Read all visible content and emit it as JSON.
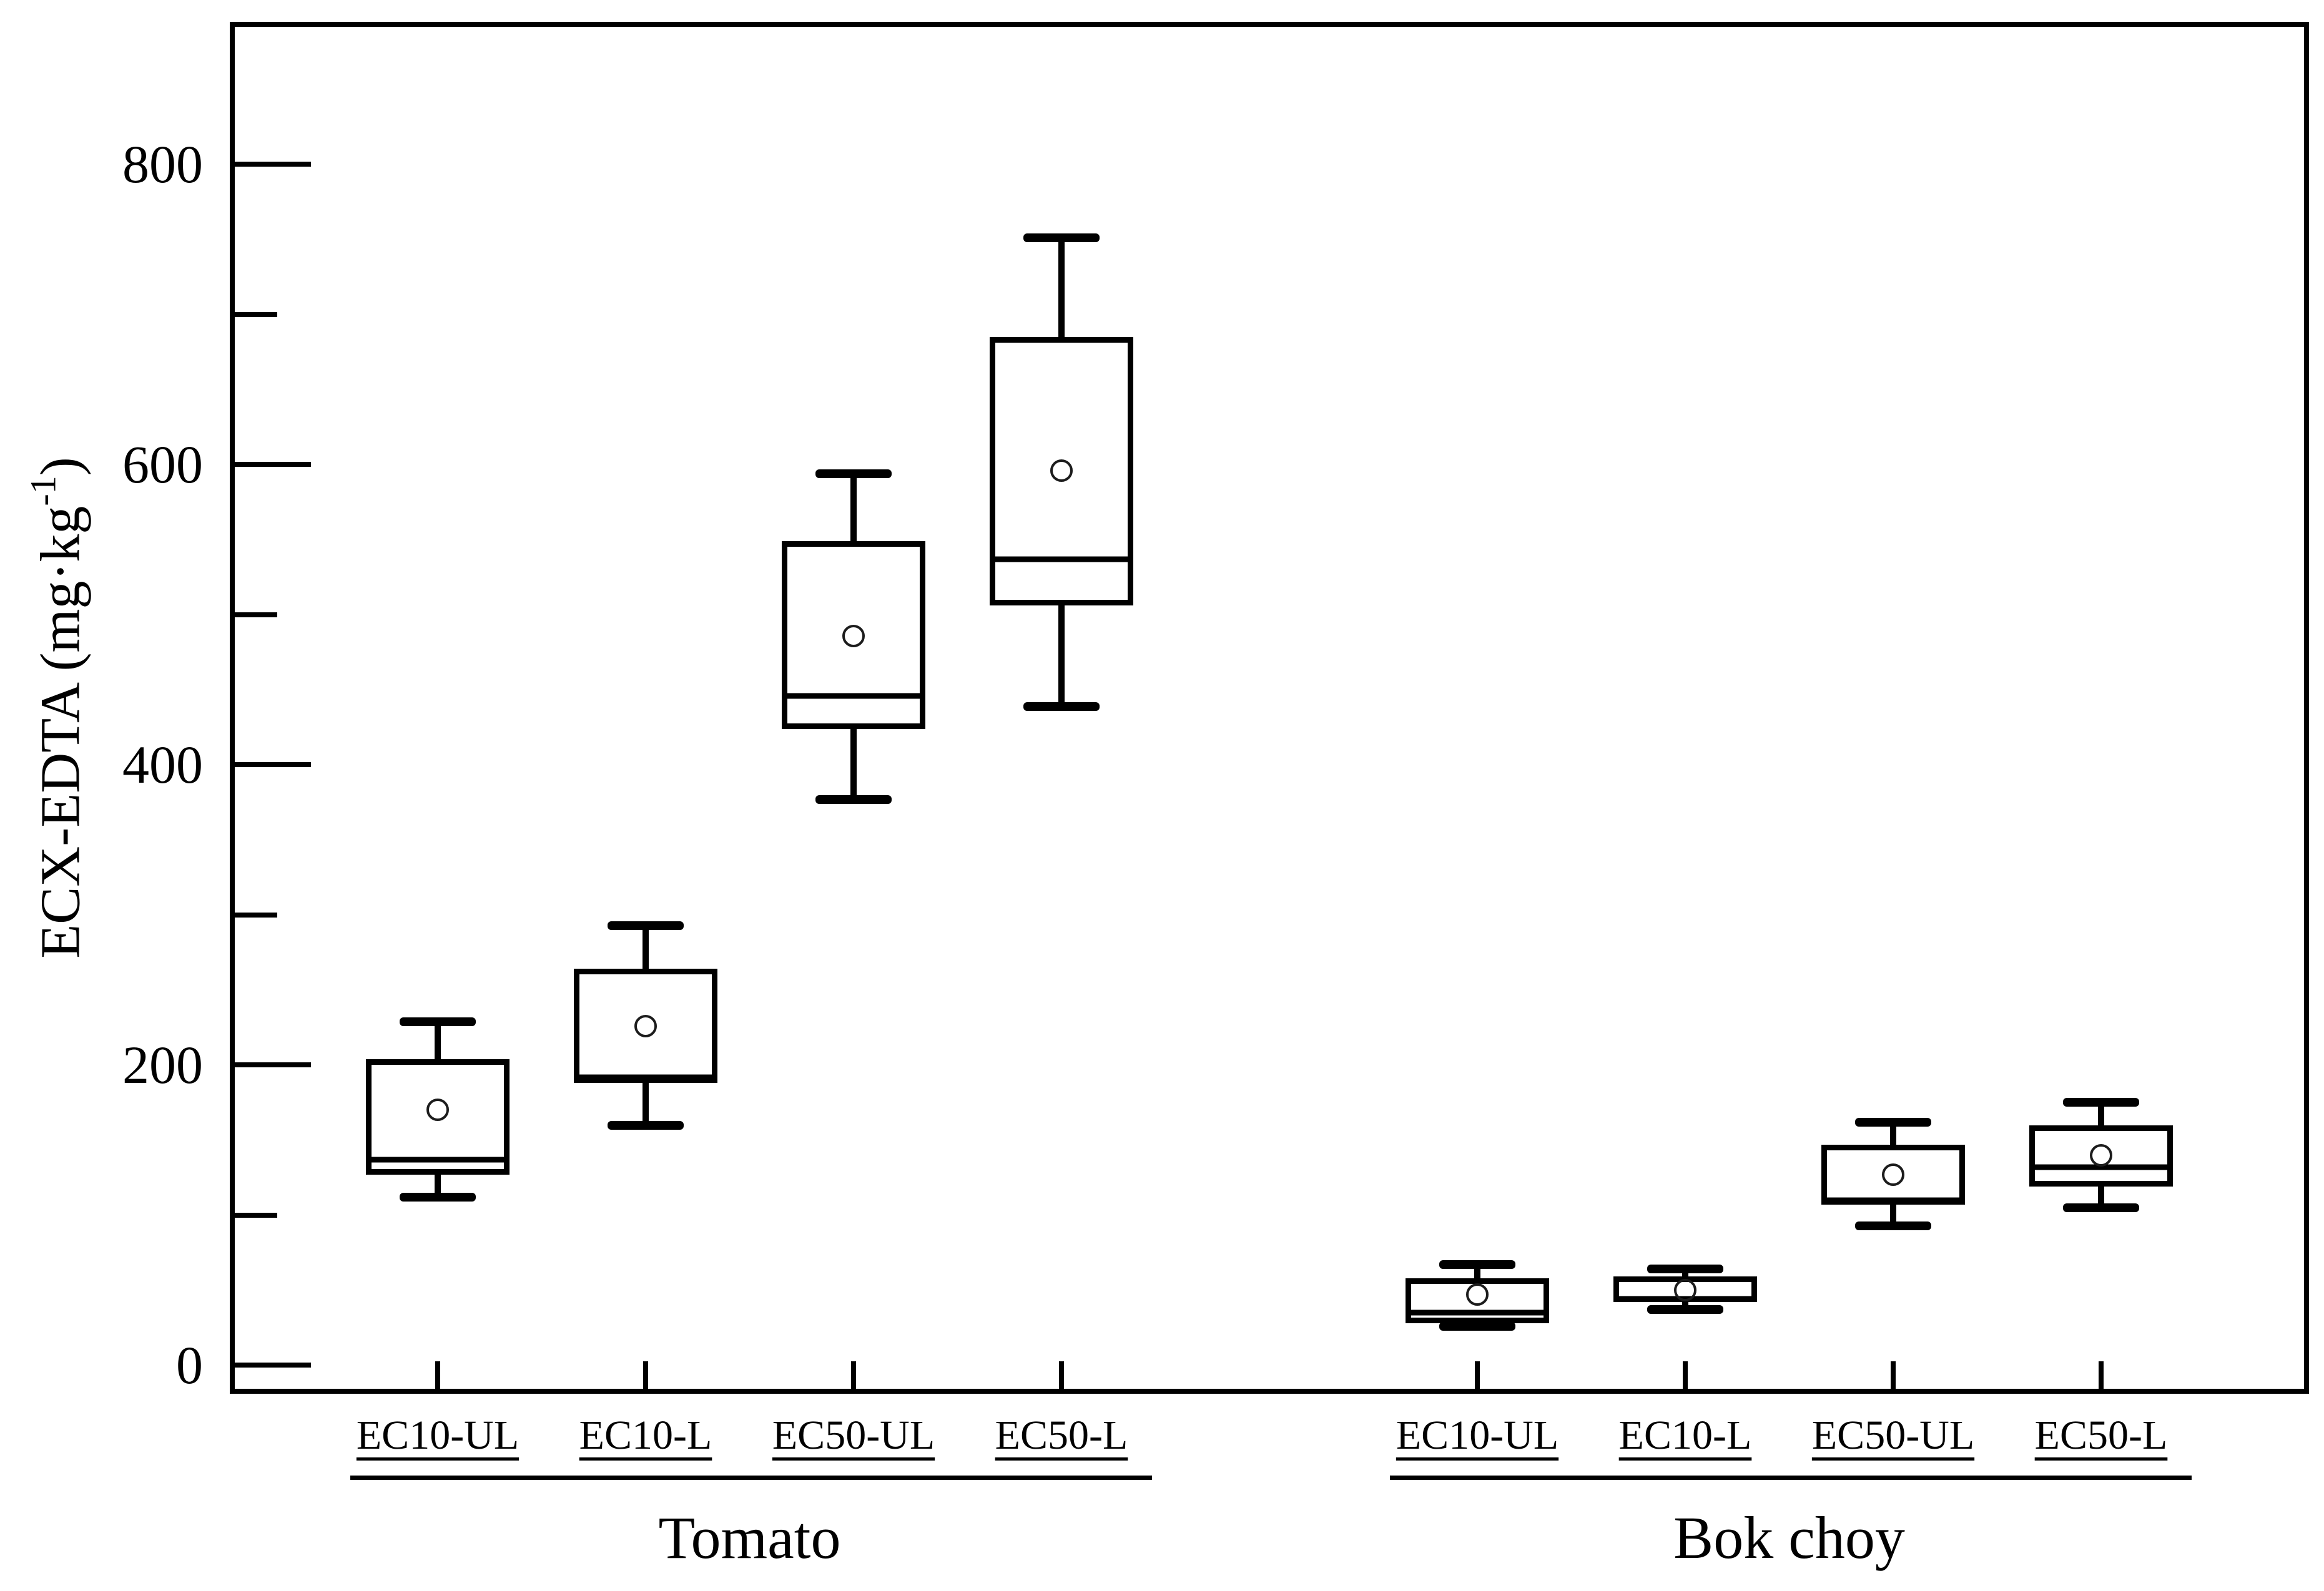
{
  "chart_data": {
    "type": "boxplot",
    "title": "",
    "ylabel": {
      "prefix": "ECX-EDTA (mg·kg",
      "sup": "-1",
      "suffix": ")"
    },
    "y_axis": {
      "min": -19,
      "max": 895,
      "major_ticks": [
        0,
        200,
        400,
        600,
        800
      ],
      "tick_labels": [
        "0",
        "200",
        "400",
        "600",
        "800"
      ],
      "minor_step": 100,
      "grid": false
    },
    "legend": "none",
    "groups": [
      {
        "label": "Tomato",
        "categories": [
          {
            "label": "EC10-UL",
            "whisker_low": 112,
            "q1": 127,
            "median": 137,
            "q3": 204,
            "whisker_high": 229,
            "mean": 170
          },
          {
            "label": "EC10-L",
            "whisker_low": 160,
            "q1": 188,
            "median": 192,
            "q3": 264,
            "whisker_high": 293,
            "mean": 226
          },
          {
            "label": "EC50-UL",
            "whisker_low": 377,
            "q1": 424,
            "median": 446,
            "q3": 549,
            "whisker_high": 594,
            "mean": 486
          },
          {
            "label": "EC50-L",
            "whisker_low": 439,
            "q1": 506,
            "median": 537,
            "q3": 685,
            "whisker_high": 751,
            "mean": 596
          }
        ]
      },
      {
        "label": "Bok choy",
        "categories": [
          {
            "label": "EC10-UL",
            "whisker_low": 26,
            "q1": 28,
            "median": 35,
            "q3": 58,
            "whisker_high": 67,
            "mean": 47
          },
          {
            "label": "EC10-L",
            "whisker_low": 37,
            "q1": 42,
            "median": 44,
            "q3": 59,
            "whisker_high": 64,
            "mean": 50
          },
          {
            "label": "EC50-UL",
            "whisker_low": 93,
            "q1": 107,
            "median": 110,
            "q3": 147,
            "whisker_high": 162,
            "mean": 127
          },
          {
            "label": "EC50-L",
            "whisker_low": 105,
            "q1": 119,
            "median": 132,
            "q3": 160,
            "whisker_high": 175,
            "mean": 140
          }
        ]
      }
    ],
    "colors": {
      "line": "#000000",
      "fill": "#ffffff",
      "background": "#ffffff"
    }
  }
}
